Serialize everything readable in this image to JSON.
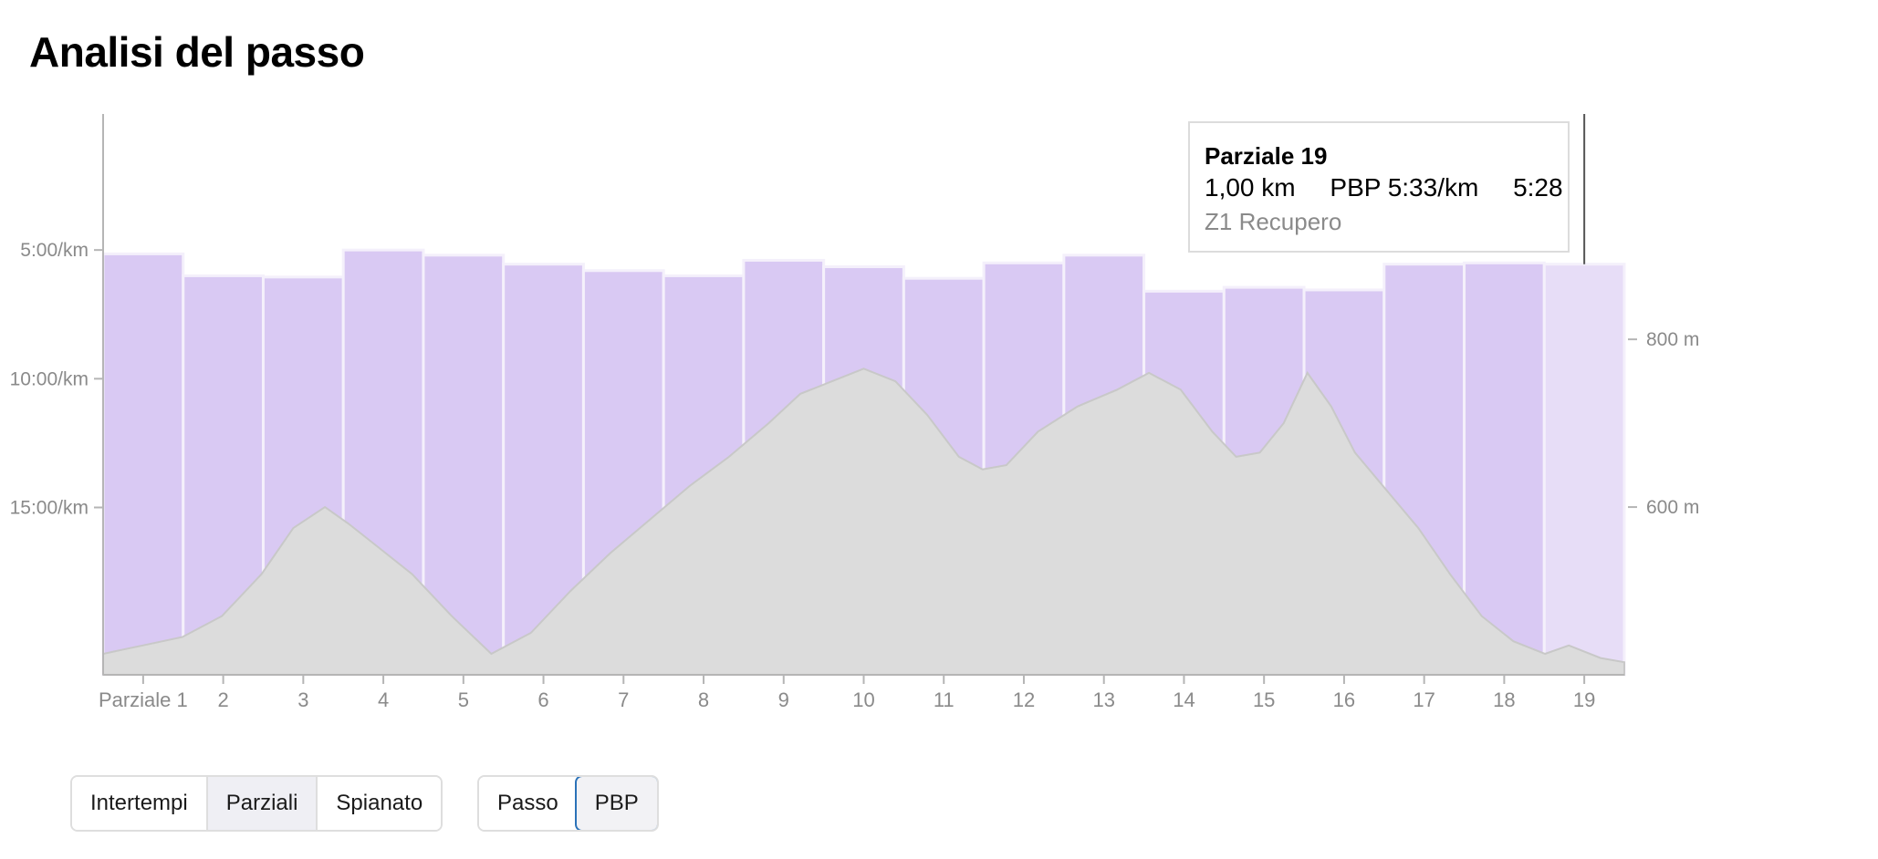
{
  "page": {
    "title": "Analisi del passo"
  },
  "chart_data": {
    "type": "bar",
    "categories": [
      "Parziale 1",
      "2",
      "3",
      "4",
      "5",
      "6",
      "7",
      "8",
      "9",
      "10",
      "11",
      "12",
      "13",
      "14",
      "15",
      "16",
      "17",
      "18",
      "19"
    ],
    "series": [
      {
        "values": [
          5.15,
          6.0,
          6.05,
          5.0,
          5.2,
          5.55,
          5.8,
          6.0,
          5.4,
          5.65,
          6.1,
          5.5,
          5.2,
          6.6,
          6.45,
          6.55,
          5.55,
          5.5,
          5.55
        ]
      }
    ],
    "y_axis": {
      "ticks": [
        "5:00/km",
        "10:00/km",
        "15:00/km"
      ],
      "tick_values": [
        5,
        10,
        15
      ],
      "range": [
        0,
        21.5
      ],
      "reversed": true,
      "unit": "min/km"
    },
    "elevation": {
      "ticks": [
        "800 m",
        "600 m"
      ],
      "tick_values": [
        800,
        600
      ],
      "profile_x": [
        0.0,
        0.5,
        1.0,
        1.5,
        2.0,
        2.4,
        2.8,
        3.1,
        3.5,
        3.9,
        4.4,
        4.9,
        5.4,
        5.9,
        6.4,
        6.9,
        7.4,
        7.9,
        8.4,
        8.8,
        9.2,
        9.6,
        10.0,
        10.4,
        10.8,
        11.1,
        11.4,
        11.8,
        12.3,
        12.8,
        13.2,
        13.6,
        14.0,
        14.3,
        14.6,
        14.9,
        15.2,
        15.5,
        15.8,
        16.2,
        16.6,
        17.0,
        17.4,
        17.8,
        18.2,
        18.5,
        18.9,
        19.2
      ],
      "profile_y": [
        425,
        435,
        445,
        470,
        520,
        575,
        600,
        580,
        550,
        520,
        470,
        425,
        450,
        500,
        545,
        585,
        625,
        660,
        700,
        735,
        750,
        765,
        750,
        710,
        660,
        645,
        650,
        690,
        720,
        740,
        760,
        740,
        690,
        660,
        665,
        700,
        760,
        720,
        665,
        620,
        575,
        520,
        470,
        440,
        425,
        435,
        420,
        415
      ],
      "range": [
        400,
        1060
      ]
    },
    "grid": false,
    "highlighted_index": 18
  },
  "tooltip": {
    "title": "Parziale 19",
    "distance": "1,00 km",
    "pace": "PBP 5:33/km",
    "time": "5:28",
    "zone": "Z1 Recupero"
  },
  "controls": {
    "group1": [
      {
        "label": "Intertempi",
        "selected": false
      },
      {
        "label": "Parziali",
        "selected": true
      },
      {
        "label": "Spianato",
        "selected": false
      }
    ],
    "group2": [
      {
        "label": "Passo",
        "selected": false
      },
      {
        "label": "PBP",
        "selected": true
      }
    ]
  },
  "colors": {
    "bar": "#d9c9f3",
    "bar_highlight": "#e7ddf7",
    "bar_gap": "#f4f0fb",
    "elevation_fill": "#dcdcdc",
    "axis": "#b5b5b5",
    "tick_label": "#8a8a8a",
    "selected_outline": "#2b72b8"
  }
}
